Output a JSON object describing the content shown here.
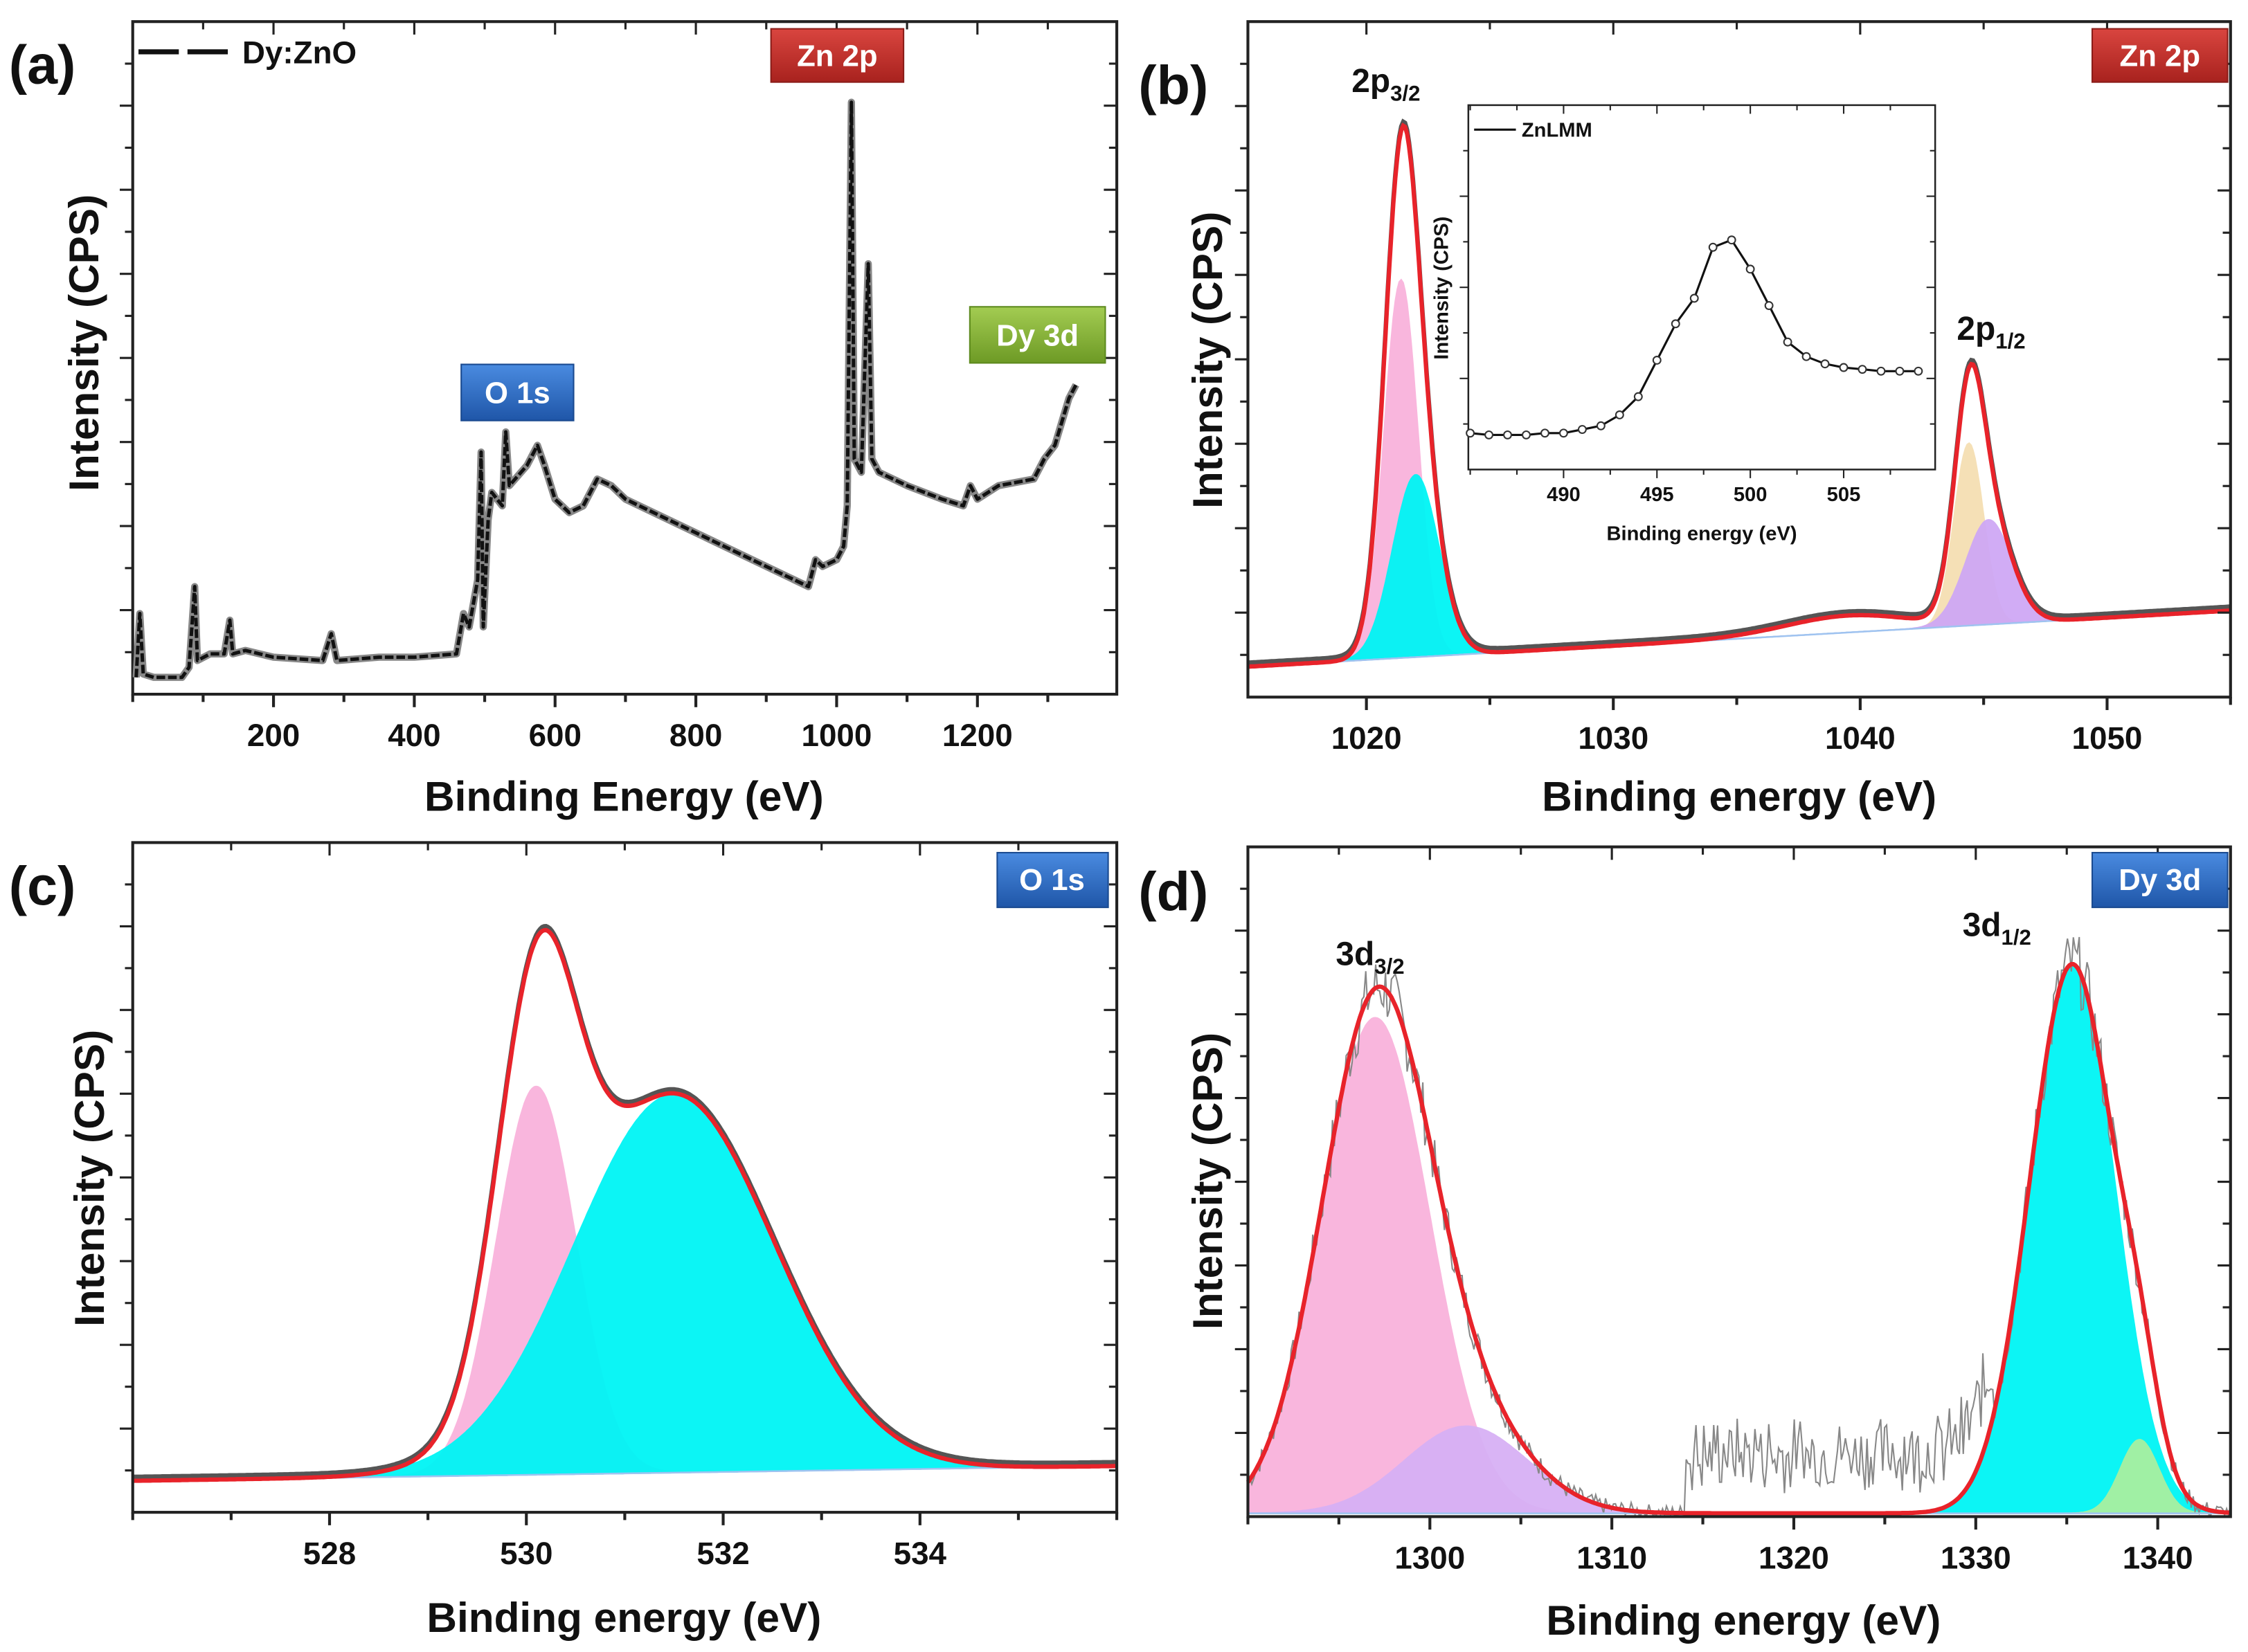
{
  "chart_data": [
    {
      "panel": "(a)",
      "type": "line",
      "title": "",
      "xlabel": "Binding Energy (eV)",
      "ylabel": "Intensity (CPS)",
      "xlim": [
        0,
        1398
      ],
      "ylim": [
        0,
        100
      ],
      "xticks": [
        200,
        400,
        600,
        800,
        1000,
        1200
      ],
      "grid": false,
      "legend": {
        "entries": [
          "Dy:ZnO"
        ],
        "position": "top-left"
      },
      "annotations": [
        {
          "label": "Zn 2p",
          "color": "#c0312d"
        },
        {
          "label": "O 1s",
          "color": "#2f6fc0"
        },
        {
          "label": "Dy 3d",
          "color": "#84b33a"
        }
      ],
      "series": [
        {
          "name": "Dy:ZnO",
          "x": [
            5,
            10,
            15,
            30,
            70,
            80,
            88,
            92,
            110,
            130,
            138,
            142,
            160,
            200,
            270,
            282,
            290,
            350,
            400,
            460,
            470,
            478,
            490,
            495,
            498,
            505,
            510,
            525,
            530,
            535,
            560,
            575,
            585,
            600,
            620,
            640,
            660,
            680,
            700,
            800,
            900,
            960,
            970,
            980,
            1000,
            1010,
            1015,
            1021,
            1025,
            1035,
            1045,
            1050,
            1060,
            1100,
            1150,
            1180,
            1190,
            1200,
            1230,
            1280,
            1295,
            1310,
            1330,
            1340
          ],
          "y": [
            2.5,
            12,
            3,
            2.5,
            2.5,
            4,
            16,
            5,
            6,
            6,
            11,
            6,
            6.5,
            5.5,
            5,
            9,
            5,
            5.5,
            5.5,
            6,
            12,
            10,
            17,
            36,
            10,
            26,
            30,
            28,
            39,
            31,
            34,
            37,
            34,
            29,
            27,
            28,
            32,
            31,
            29,
            24,
            19,
            16,
            20,
            19,
            20,
            22,
            28,
            88,
            35,
            33,
            64,
            35,
            33,
            31,
            29,
            28,
            31,
            29,
            31,
            32,
            35,
            37,
            44,
            46
          ]
        }
      ]
    },
    {
      "panel": "(b)",
      "type": "area",
      "xlabel": "Binding energy (eV)",
      "ylabel": "Intensity (CPS)",
      "xlim": [
        1015.2,
        1055
      ],
      "ylim": [
        0,
        100
      ],
      "xticks": [
        1020,
        1030,
        1040,
        1050
      ],
      "grid": false,
      "annotations": [
        {
          "label": "Zn 2p",
          "color": "#c0312d"
        }
      ],
      "peak_labels": [
        {
          "main": "2p",
          "sub": "3/2"
        },
        {
          "main": "2p",
          "sub": "1/2"
        }
      ],
      "background": {
        "x": [
          1015.2,
          1055
        ],
        "y": [
          4.5,
          12.8
        ]
      },
      "components": [
        {
          "center": 1021.4,
          "fwhm": 1.6,
          "height": 56,
          "color": "#f9b3dc",
          "filled": true
        },
        {
          "center": 1022.0,
          "fwhm": 2.2,
          "height": 27,
          "color": "#00f5f5",
          "filled": true
        },
        {
          "center": 1044.4,
          "fwhm": 1.4,
          "height": 27,
          "color": "#f5dfb3",
          "filled": true
        },
        {
          "center": 1045.2,
          "fwhm": 2.2,
          "height": 15.5,
          "color": "#cfa8f5",
          "filled": true
        },
        {
          "center": 1039.5,
          "fwhm": 6,
          "height": 2.5,
          "color": "#d8a0d0",
          "filled": false
        }
      ],
      "envelope_color": "#e8232a",
      "inset": {
        "type": "line",
        "xlabel": "Binding energy (eV)",
        "ylabel": "Intensity (CPS)",
        "legend": {
          "entries": [
            "ZnLMM"
          ],
          "position": "top-left"
        },
        "xlim": [
          484.9,
          509.9
        ],
        "ylim": [
          0,
          100
        ],
        "xticks": [
          490,
          495,
          500,
          505
        ],
        "series": [
          {
            "name": "ZnLMM",
            "x": [
              485,
              486,
              487,
              488,
              489,
              490,
              491,
              492,
              493,
              494,
              495,
              496,
              497,
              498,
              499,
              500,
              501,
              502,
              503,
              504,
              505,
              506,
              507,
              508,
              509
            ],
            "y": [
              10,
              9.5,
              9.5,
              9.5,
              10,
              10,
              11,
              12,
              15,
              20,
              30,
              40,
              47,
              61,
              63,
              55,
              45,
              35,
              31,
              29,
              28,
              27.5,
              27,
              27,
              27
            ]
          }
        ]
      }
    },
    {
      "panel": "(c)",
      "type": "area",
      "xlabel": "Binding energy (eV)",
      "ylabel": "Intensity (CPS)",
      "xlim": [
        526,
        536
      ],
      "ylim": [
        0,
        100
      ],
      "xticks": [
        528,
        530,
        532,
        534
      ],
      "grid": false,
      "annotations": [
        {
          "label": "O 1s",
          "color": "#2f6fc0"
        }
      ],
      "background": {
        "x": [
          526,
          536
        ],
        "y": [
          4.7,
          6.9
        ]
      },
      "components": [
        {
          "center": 530.1,
          "fwhm": 0.95,
          "height": 58,
          "color": "#f9b3dc",
          "filled": true
        },
        {
          "center": 531.5,
          "fwhm": 2.4,
          "height": 56.5,
          "color": "#00f5f5",
          "filled": true
        }
      ],
      "envelope_color": "#e8232a"
    },
    {
      "panel": "(d)",
      "type": "area",
      "xlabel": "Binding energy (eV)",
      "ylabel": "Intensity (CPS)",
      "xlim": [
        1290,
        1344
      ],
      "ylim": [
        0,
        100
      ],
      "xticks": [
        1300,
        1310,
        1320,
        1330,
        1340
      ],
      "grid": false,
      "annotations": [
        {
          "label": "Dy 3d",
          "color": "#2f6fc0"
        }
      ],
      "peak_labels": [
        {
          "main": "3d",
          "sub": "3/2"
        },
        {
          "main": "3d",
          "sub": "1/2"
        }
      ],
      "background": {
        "x": [
          1290,
          1344
        ],
        "y": [
          0.5,
          0.5
        ]
      },
      "components": [
        {
          "center": 1297,
          "fwhm": 7,
          "height": 74,
          "color": "#f9b3dc",
          "filled": true
        },
        {
          "center": 1302,
          "fwhm": 8,
          "height": 13,
          "color": "#d7b0f5",
          "filled": true
        },
        {
          "center": 1335.3,
          "fwhm": 5.5,
          "height": 82,
          "color": "#00f5f5",
          "filled": true
        },
        {
          "center": 1339,
          "fwhm": 2.5,
          "height": 11,
          "color": "#a8f0a0",
          "filled": true
        }
      ],
      "envelope_color": "#e8232a"
    }
  ]
}
